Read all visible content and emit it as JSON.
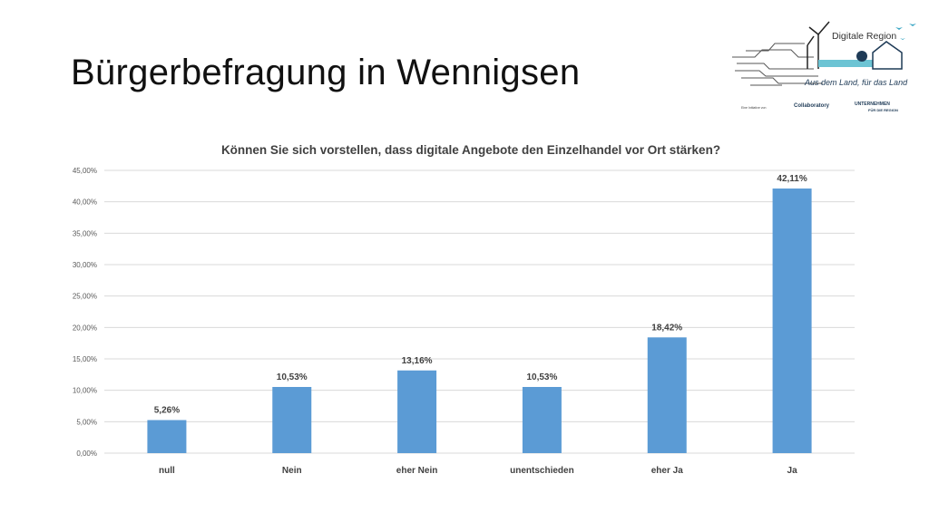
{
  "slide": {
    "title": "Bürgerbefragung in Wennigsen"
  },
  "logo": {
    "name": "Digitale Region",
    "slogan": "Aus dem Land, für das Land",
    "initiative": "Eine Initiative von",
    "partner1": "Collaboratory",
    "partner2_line1": "UNTERNEHMEN",
    "partner2_line2": "FÜR DIE REGION"
  },
  "chart_data": {
    "type": "bar",
    "title": "Können Sie sich vorstellen, dass digitale Angebote den Einzelhandel vor Ort stärken?",
    "categories": [
      "null",
      "Nein",
      "eher Nein",
      "unentschieden",
      "eher Ja",
      "Ja"
    ],
    "values": [
      5.26,
      10.53,
      13.16,
      10.53,
      18.42,
      42.11
    ],
    "data_labels": [
      "5,26%",
      "10,53%",
      "13,16%",
      "10,53%",
      "18,42%",
      "42,11%"
    ],
    "yticks": [
      "0,00%",
      "5,00%",
      "10,00%",
      "15,00%",
      "20,00%",
      "25,00%",
      "30,00%",
      "35,00%",
      "40,00%",
      "45,00%"
    ],
    "ylim": [
      0,
      45
    ],
    "xlabel": "",
    "ylabel": "",
    "grid": true,
    "bar_color": "#5B9BD5"
  }
}
